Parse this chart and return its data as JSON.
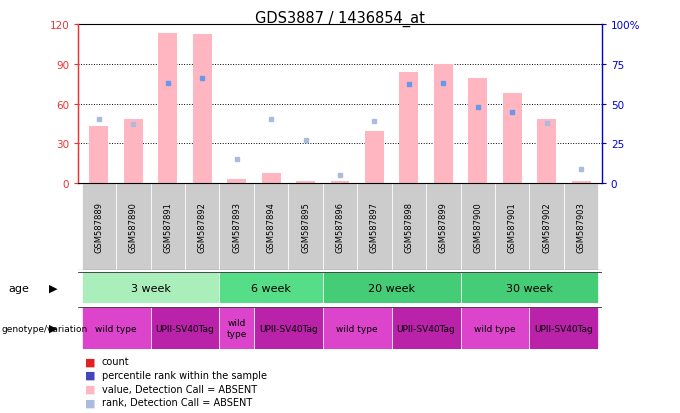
{
  "title": "GDS3887 / 1436854_at",
  "samples": [
    "GSM587889",
    "GSM587890",
    "GSM587891",
    "GSM587892",
    "GSM587893",
    "GSM587894",
    "GSM587895",
    "GSM587896",
    "GSM587897",
    "GSM587898",
    "GSM587899",
    "GSM587900",
    "GSM587901",
    "GSM587902",
    "GSM587903"
  ],
  "pink_bars": [
    43,
    48,
    113,
    112,
    3,
    8,
    2,
    2,
    39,
    84,
    90,
    79,
    68,
    48,
    2
  ],
  "blue_squares": [
    40,
    37,
    63,
    66,
    15,
    40,
    27,
    5,
    39,
    62,
    63,
    48,
    45,
    38,
    9
  ],
  "is_absent": [
    true,
    true,
    false,
    false,
    true,
    true,
    true,
    true,
    true,
    false,
    false,
    false,
    false,
    true,
    true
  ],
  "ylim_left": [
    0,
    120
  ],
  "ylim_right": [
    0,
    100
  ],
  "yticks_left": [
    0,
    30,
    60,
    90,
    120
  ],
  "yticks_right": [
    0,
    25,
    50,
    75,
    100
  ],
  "ytick_labels_left": [
    "0",
    "30",
    "60",
    "90",
    "120"
  ],
  "ytick_labels_right": [
    "0",
    "25",
    "50",
    "75",
    "100%"
  ],
  "age_groups": [
    {
      "label": "3 week",
      "start": 0,
      "end": 4,
      "color": "#AAEEBB"
    },
    {
      "label": "6 week",
      "start": 4,
      "end": 7,
      "color": "#55DD88"
    },
    {
      "label": "20 week",
      "start": 7,
      "end": 11,
      "color": "#44CC77"
    },
    {
      "label": "30 week",
      "start": 11,
      "end": 15,
      "color": "#44CC77"
    }
  ],
  "genotype_groups": [
    {
      "label": "wild type",
      "start": 0,
      "end": 2
    },
    {
      "label": "UPII-SV40Tag",
      "start": 2,
      "end": 4
    },
    {
      "label": "wild\ntype",
      "start": 4,
      "end": 5
    },
    {
      "label": "UPII-SV40Tag",
      "start": 5,
      "end": 7
    },
    {
      "label": "wild type",
      "start": 7,
      "end": 9
    },
    {
      "label": "UPII-SV40Tag",
      "start": 9,
      "end": 11
    },
    {
      "label": "wild type",
      "start": 11,
      "end": 13
    },
    {
      "label": "UPII-SV40Tag",
      "start": 13,
      "end": 15
    }
  ],
  "bar_width": 0.55,
  "pink_color": "#FFB6C1",
  "blue_color": "#6699EE",
  "blue_absent_color": "#AABBDD",
  "left_tick_color": "#EE3333",
  "right_tick_color": "#0000CC",
  "grid_color": "#000000",
  "sample_box_color": "#CCCCCC",
  "genotype_color_a": "#DD44CC",
  "genotype_color_b": "#BB22AA"
}
